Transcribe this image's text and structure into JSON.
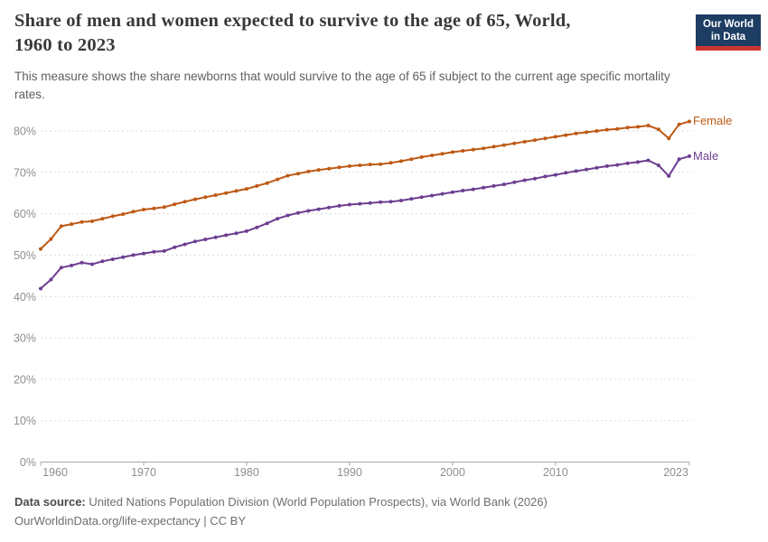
{
  "header": {
    "title_line1": "Share of men and women expected to survive to the age of 65, World,",
    "title_line2": "1960 to 2023",
    "logo": {
      "line1": "Our World",
      "line2": "in Data",
      "bg_color": "#1d3d63",
      "accent_color": "#cc3632"
    }
  },
  "subtitle": {
    "line1": "This measure shows the share newborns that would survive to the age of 65 if subject to the current age specific mortality",
    "line2": "rates."
  },
  "footer": {
    "datasource_label": "Data source:",
    "datasource_text": " United Nations Population Division (World Population Prospects), via World Bank (2026)",
    "link": "OurWorldinData.org/life-expectancy",
    "license": " | CC BY"
  },
  "chart_data": {
    "type": "line",
    "title": "Share of men and women expected to survive to the age of 65, World, 1960 to 2023",
    "subtitle": "This measure shows the share newborns that would survive to the age of 65 if subject to the current age specific mortality rates.",
    "xlabel": "",
    "ylabel": "",
    "ylim": [
      0,
      80
    ],
    "grid": "dashed horizontal gridlines",
    "legend": "line-end labels right of plot",
    "x": [
      1960,
      1961,
      1962,
      1963,
      1964,
      1965,
      1966,
      1967,
      1968,
      1969,
      1970,
      1971,
      1972,
      1973,
      1974,
      1975,
      1976,
      1977,
      1978,
      1979,
      1980,
      1981,
      1982,
      1983,
      1984,
      1985,
      1986,
      1987,
      1988,
      1989,
      1990,
      1991,
      1992,
      1993,
      1994,
      1995,
      1996,
      1997,
      1998,
      1999,
      2000,
      2001,
      2002,
      2003,
      2004,
      2005,
      2006,
      2007,
      2008,
      2009,
      2010,
      2011,
      2012,
      2013,
      2014,
      2015,
      2016,
      2017,
      2018,
      2019,
      2020,
      2021,
      2022,
      2023
    ],
    "series": [
      {
        "name": "Female",
        "color": "#be5915",
        "values": [
          51.5,
          53.9,
          57.0,
          57.5,
          58.0,
          58.2,
          58.8,
          59.4,
          59.9,
          60.5,
          61.0,
          61.3,
          61.6,
          62.3,
          62.9,
          63.5,
          64.0,
          64.5,
          65.0,
          65.5,
          66.0,
          66.7,
          67.4,
          68.3,
          69.2,
          69.7,
          70.2,
          70.6,
          70.9,
          71.2,
          71.5,
          71.7,
          71.9,
          72.0,
          72.3,
          72.7,
          73.2,
          73.7,
          74.1,
          74.5,
          74.9,
          75.2,
          75.5,
          75.8,
          76.2,
          76.6,
          77.0,
          77.4,
          77.8,
          78.2,
          78.6,
          79.0,
          79.4,
          79.7,
          80.0,
          80.3,
          80.5,
          80.8,
          81.0,
          81.3,
          80.4,
          78.2,
          81.6,
          82.3
        ]
      },
      {
        "name": "Male",
        "color": "#6d3e91",
        "values": [
          41.9,
          44.1,
          47.0,
          47.5,
          48.2,
          47.8,
          48.5,
          49.0,
          49.5,
          50.0,
          50.4,
          50.8,
          51.0,
          51.9,
          52.6,
          53.3,
          53.8,
          54.3,
          54.8,
          55.3,
          55.8,
          56.7,
          57.7,
          58.8,
          59.6,
          60.2,
          60.7,
          61.1,
          61.5,
          61.9,
          62.2,
          62.4,
          62.6,
          62.8,
          62.9,
          63.2,
          63.6,
          64.0,
          64.4,
          64.8,
          65.2,
          65.6,
          65.9,
          66.3,
          66.7,
          67.1,
          67.6,
          68.1,
          68.5,
          69.0,
          69.4,
          69.9,
          70.3,
          70.7,
          71.1,
          71.5,
          71.8,
          72.2,
          72.5,
          72.9,
          71.7,
          69.1,
          73.2,
          73.9
        ]
      }
    ],
    "y_tick_values": [
      0,
      10,
      20,
      30,
      40,
      50,
      60,
      70,
      80
    ],
    "y_tick_labels": [
      "0%",
      "10%",
      "20%",
      "30%",
      "40%",
      "50%",
      "60%",
      "70%",
      "80%"
    ],
    "x_tick_values": [
      1960,
      1970,
      1980,
      1990,
      2000,
      2010,
      2023
    ],
    "x_tick_labels": [
      "1960",
      "1970",
      "1980",
      "1990",
      "2000",
      "2010",
      "2023"
    ],
    "colors": {
      "grid": "#dadada",
      "axis": "#a8a8a8",
      "tick_text": "#8f8f8f"
    }
  }
}
